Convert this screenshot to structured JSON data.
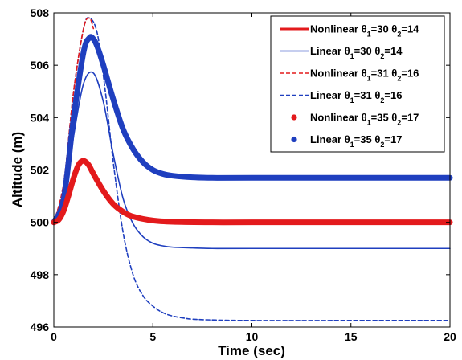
{
  "chart_data": {
    "type": "line",
    "xlabel": "Time (sec)",
    "ylabel": "Altitude (m)",
    "xlim": [
      0,
      20
    ],
    "ylim": [
      496,
      508
    ],
    "xticks": [
      "0",
      "5",
      "10",
      "15",
      "20"
    ],
    "yticks": [
      "496",
      "498",
      "500",
      "502",
      "504",
      "506",
      "508"
    ],
    "grid": false,
    "legend_position": "top-right",
    "series": [
      {
        "name": "Nonlinear θ1=30 θ2=14",
        "legend": {
          "prefix": "Nonlinear ",
          "t1": "30",
          "t2": "14"
        },
        "color": "#e31a1c",
        "style": "solid-medium",
        "x": [
          0,
          0.25,
          0.5,
          0.75,
          1.0,
          1.25,
          1.5,
          1.75,
          2.0,
          2.5,
          3.0,
          3.5,
          4.0,
          5.0,
          6.0,
          8.0,
          10.0,
          15.0,
          20.0
        ],
        "y": [
          500,
          500.1,
          500.45,
          501.05,
          501.7,
          502.2,
          502.35,
          502.2,
          501.85,
          501.2,
          500.7,
          500.4,
          500.22,
          500.07,
          500.02,
          500.0,
          500.0,
          500.0,
          500.0
        ]
      },
      {
        "name": "Linear θ1=30 θ2=14",
        "legend": {
          "prefix": "Linear ",
          "t1": "30",
          "t2": "14"
        },
        "color": "#1f3fbf",
        "style": "solid-thin",
        "x": [
          0,
          0.5,
          1.0,
          1.5,
          2.0,
          2.5,
          3.0,
          3.5,
          4.0,
          4.5,
          5.0,
          5.5,
          6.0,
          7.0,
          8.0,
          10.0,
          15.0,
          20.0
        ],
        "y": [
          500,
          500.8,
          503.3,
          505.3,
          505.7,
          504.6,
          502.6,
          500.9,
          499.95,
          499.45,
          499.2,
          499.1,
          499.05,
          499.02,
          499.0,
          499.0,
          499.0,
          499.0
        ]
      },
      {
        "name": "Nonlinear θ1=31 θ2=16",
        "legend": {
          "prefix": "Nonlinear ",
          "t1": "31",
          "t2": "16"
        },
        "color": "#e31a1c",
        "style": "dashed",
        "x": [
          0,
          0.5,
          1.0,
          1.5,
          1.8,
          2.0
        ],
        "y": [
          500,
          501.5,
          505.0,
          507.4,
          507.8,
          507.4
        ]
      },
      {
        "name": "Linear θ1=31 θ2=16",
        "legend": {
          "prefix": "Linear ",
          "t1": "31",
          "t2": "16"
        },
        "color": "#1f3fbf",
        "style": "dashed",
        "x": [
          0,
          0.5,
          1.0,
          1.5,
          1.8,
          2.2,
          2.6,
          3.0,
          3.5,
          4.0,
          4.5,
          5.0,
          5.5,
          6.0,
          6.5,
          7.0,
          8.0,
          10.0,
          15.0,
          20.0
        ],
        "y": [
          500,
          501.5,
          505.0,
          507.4,
          507.8,
          507.2,
          505.0,
          502.3,
          499.6,
          498.0,
          497.2,
          496.8,
          496.55,
          496.42,
          496.35,
          496.3,
          496.27,
          496.25,
          496.25,
          496.25
        ]
      },
      {
        "name": "Nonlinear θ1=35 θ2=17",
        "legend": {
          "prefix": "Nonlinear ",
          "t1": "35",
          "t2": "17"
        },
        "color": "#e31a1c",
        "style": "markers",
        "x": [
          0,
          0.25,
          0.5,
          0.75,
          1.0,
          1.25,
          1.5,
          1.75,
          2.0,
          2.5,
          3.0,
          3.5,
          4.0,
          5.0,
          6.0,
          8.0,
          10.0,
          15.0,
          20.0
        ],
        "y": [
          500,
          500.1,
          500.45,
          501.05,
          501.7,
          502.2,
          502.35,
          502.2,
          501.85,
          501.2,
          500.7,
          500.4,
          500.22,
          500.07,
          500.02,
          500.0,
          500.0,
          500.0,
          500.0
        ]
      },
      {
        "name": "Linear θ1=35 θ2=17",
        "legend": {
          "prefix": "Linear ",
          "t1": "35",
          "t2": "17"
        },
        "color": "#1f3fbf",
        "style": "markers",
        "x": [
          0,
          0.5,
          1.0,
          1.5,
          1.8,
          2.0,
          2.2,
          2.5,
          3.0,
          3.5,
          4.0,
          4.5,
          5.0,
          5.5,
          6.0,
          7.0,
          8.0,
          10.0,
          15.0,
          20.0
        ],
        "y": [
          500,
          500.9,
          504.0,
          506.5,
          507.05,
          507.0,
          506.7,
          506.0,
          504.7,
          503.55,
          502.8,
          502.3,
          502.0,
          501.85,
          501.78,
          501.72,
          501.7,
          501.7,
          501.7,
          501.7
        ]
      }
    ]
  }
}
